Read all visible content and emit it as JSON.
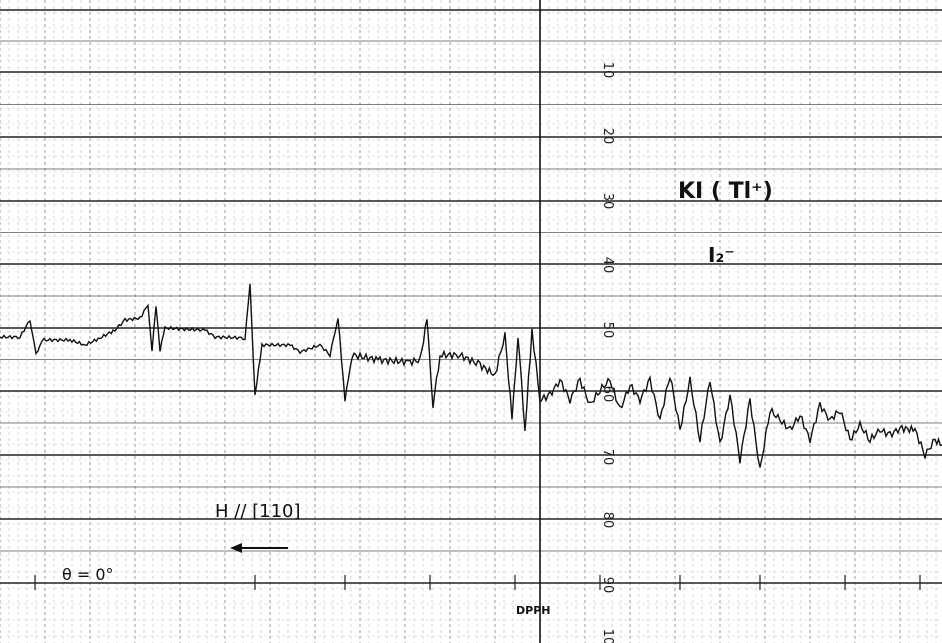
{
  "chart_data": {
    "type": "line",
    "title": "KI ( Tl⁺)",
    "species_label": "I₂⁻",
    "field_direction": "H // [110]",
    "angle_label": "θ = 0°",
    "marker_label": "DPPH",
    "scale_labels": [
      "10",
      "20",
      "30",
      "40",
      "50",
      "60",
      "70",
      "80",
      "90",
      "10"
    ],
    "series": [
      {
        "values": [
          [
            0,
            337
          ],
          [
            20,
            337
          ],
          [
            30,
            320
          ],
          [
            36,
            355
          ],
          [
            42,
            340
          ],
          [
            70,
            340
          ],
          [
            85,
            345
          ],
          [
            100,
            338
          ],
          [
            115,
            330
          ],
          [
            125,
            320
          ],
          [
            140,
            318
          ],
          [
            148,
            305
          ],
          [
            152,
            350
          ],
          [
            156,
            305
          ],
          [
            160,
            350
          ],
          [
            165,
            328
          ],
          [
            200,
            330
          ],
          [
            205,
            330
          ],
          [
            215,
            337
          ],
          [
            245,
            338
          ],
          [
            250,
            285
          ],
          [
            255,
            395
          ],
          [
            262,
            345
          ],
          [
            290,
            345
          ],
          [
            300,
            352
          ],
          [
            320,
            345
          ],
          [
            330,
            355
          ],
          [
            338,
            318
          ],
          [
            345,
            400
          ],
          [
            352,
            355
          ],
          [
            380,
            360
          ],
          [
            410,
            362
          ],
          [
            420,
            360
          ],
          [
            427,
            320
          ],
          [
            433,
            405
          ],
          [
            440,
            355
          ],
          [
            460,
            355
          ],
          [
            480,
            365
          ],
          [
            495,
            375
          ],
          [
            505,
            335
          ],
          [
            512,
            420
          ],
          [
            518,
            335
          ],
          [
            525,
            430
          ],
          [
            532,
            330
          ],
          [
            540,
            400
          ],
          [
            550,
            395
          ],
          [
            560,
            380
          ],
          [
            570,
            400
          ],
          [
            580,
            380
          ],
          [
            590,
            405
          ],
          [
            600,
            390
          ],
          [
            610,
            380
          ],
          [
            620,
            410
          ],
          [
            630,
            385
          ],
          [
            640,
            400
          ],
          [
            650,
            380
          ],
          [
            660,
            420
          ],
          [
            670,
            375
          ],
          [
            680,
            430
          ],
          [
            690,
            380
          ],
          [
            700,
            440
          ],
          [
            710,
            380
          ],
          [
            720,
            445
          ],
          [
            730,
            395
          ],
          [
            740,
            460
          ],
          [
            750,
            400
          ],
          [
            760,
            470
          ],
          [
            770,
            410
          ],
          [
            780,
            420
          ],
          [
            790,
            430
          ],
          [
            800,
            415
          ],
          [
            810,
            440
          ],
          [
            820,
            405
          ],
          [
            830,
            420
          ],
          [
            840,
            410
          ],
          [
            850,
            440
          ],
          [
            860,
            425
          ],
          [
            870,
            440
          ],
          [
            880,
            430
          ],
          [
            890,
            435
          ],
          [
            900,
            428
          ],
          [
            915,
            430
          ],
          [
            925,
            455
          ],
          [
            935,
            440
          ],
          [
            942,
            445
          ]
        ]
      }
    ]
  }
}
